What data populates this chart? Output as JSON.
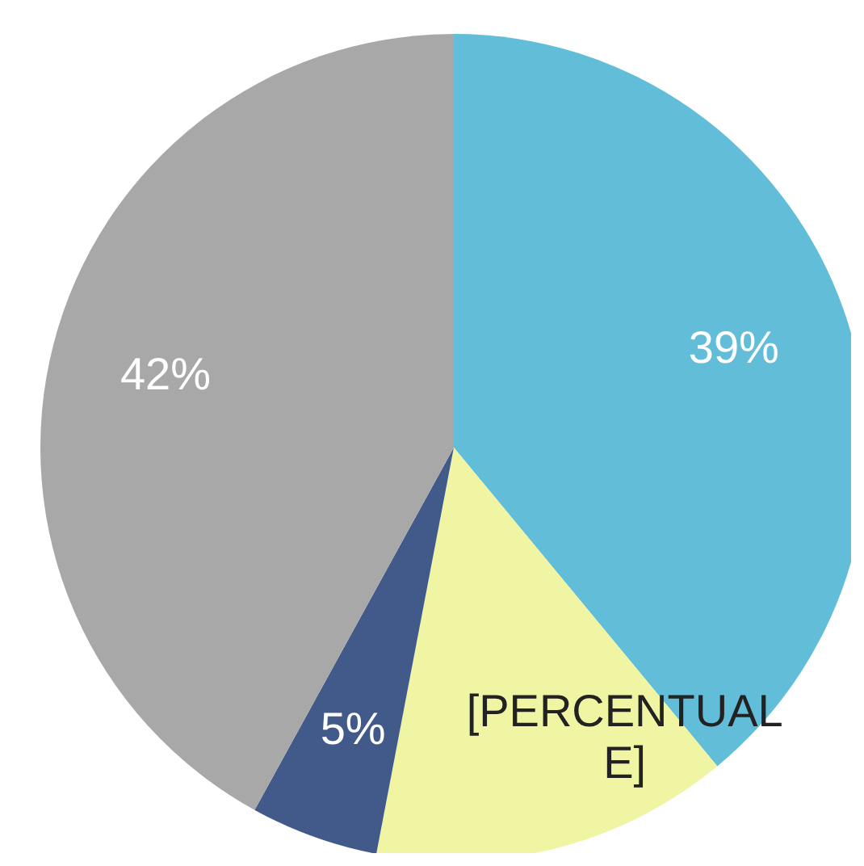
{
  "chart_data": {
    "type": "pie",
    "categories": [
      null,
      null,
      null,
      null
    ],
    "values": [
      39,
      14,
      5,
      42
    ],
    "colors": [
      "#62bdd9",
      "#f0f5a3",
      "#415a8a",
      "#a8a8a8"
    ],
    "value_labels": [
      "39%",
      "[PERCENTUALE]",
      "5%",
      "42%"
    ],
    "legend": false
  }
}
